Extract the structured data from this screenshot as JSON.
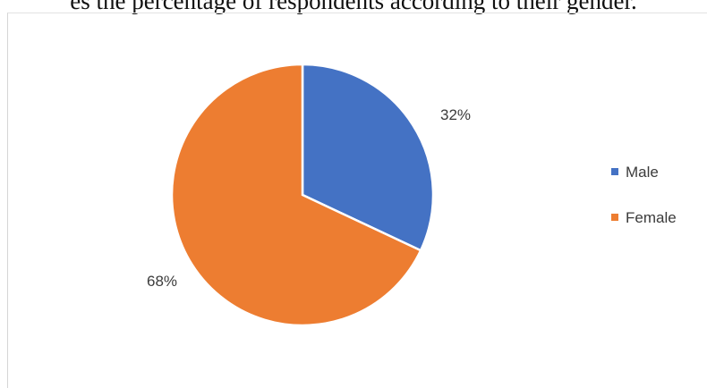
{
  "caption": "es the percentage of respondents according to their gender.",
  "chart_data": {
    "type": "pie",
    "categories": [
      "Male",
      "Female"
    ],
    "values": [
      32,
      68
    ],
    "labels": [
      "32%",
      "68%"
    ],
    "colors": [
      "#4472C4",
      "#ED7D31"
    ],
    "legend": {
      "entries": [
        "Male",
        "Female"
      ],
      "placement": "right"
    }
  }
}
